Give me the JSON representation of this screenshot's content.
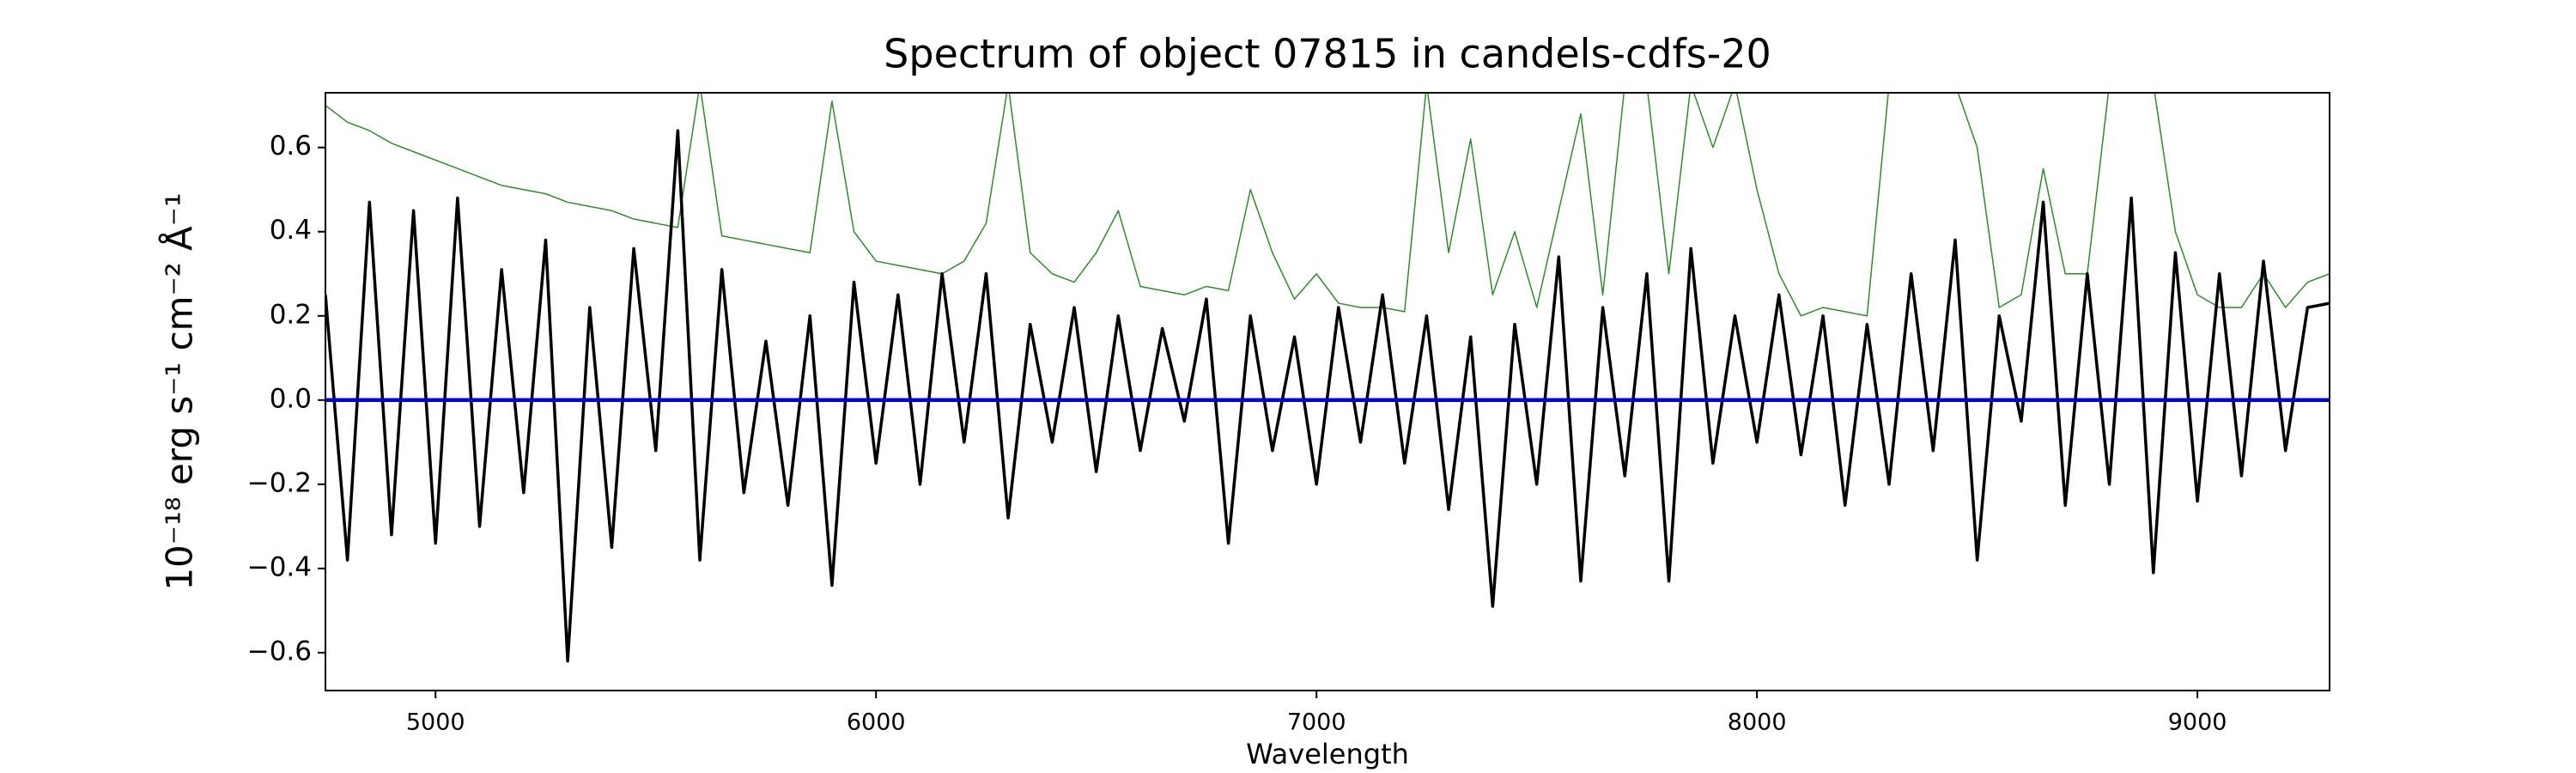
{
  "chart_data": {
    "type": "line",
    "title": "Spectrum of object 07815 in candels-cdfs-20",
    "x_label": "Wavelength",
    "y_label": "10⁻¹⁸ erg s⁻¹ cm⁻² Å⁻¹",
    "xlim": [
      4750,
      9300
    ],
    "ylim": [
      -0.69,
      0.73
    ],
    "xticks": [
      5000,
      6000,
      7000,
      8000,
      9000
    ],
    "yticks": [
      {
        "value": -0.6,
        "label": "−0.6"
      },
      {
        "value": -0.4,
        "label": "−0.4"
      },
      {
        "value": -0.2,
        "label": "−0.2"
      },
      {
        "value": 0,
        "label": "0.0"
      },
      0.2,
      0.4,
      0.6
    ],
    "grid": false,
    "x": [
      4750,
      4800,
      4850,
      4900,
      4950,
      5000,
      5050,
      5100,
      5150,
      5200,
      5250,
      5300,
      5350,
      5400,
      5450,
      5500,
      5550,
      5600,
      5650,
      5700,
      5750,
      5800,
      5850,
      5900,
      5950,
      6000,
      6050,
      6100,
      6150,
      6200,
      6250,
      6300,
      6350,
      6400,
      6450,
      6500,
      6550,
      6600,
      6650,
      6700,
      6750,
      6800,
      6850,
      6900,
      6950,
      7000,
      7050,
      7100,
      7150,
      7200,
      7250,
      7300,
      7350,
      7400,
      7450,
      7500,
      7550,
      7600,
      7650,
      7700,
      7750,
      7800,
      7850,
      7900,
      7950,
      8000,
      8050,
      8100,
      8150,
      8200,
      8250,
      8300,
      8350,
      8400,
      8450,
      8500,
      8550,
      8600,
      8650,
      8700,
      8750,
      8800,
      8850,
      8900,
      8950,
      9000,
      9050,
      9100,
      9150,
      9200,
      9250,
      9300
    ],
    "series": [
      {
        "color": "#2e8b2e",
        "width": 1.5,
        "values": [
          0.7,
          0.66,
          0.64,
          0.61,
          0.59,
          0.57,
          0.55,
          0.53,
          0.51,
          0.5,
          0.49,
          0.47,
          0.46,
          0.45,
          0.43,
          0.42,
          0.41,
          0.75,
          0.39,
          0.38,
          0.37,
          0.36,
          0.35,
          0.71,
          0.4,
          0.33,
          0.32,
          0.31,
          0.3,
          0.33,
          0.42,
          0.75,
          0.35,
          0.3,
          0.28,
          0.35,
          0.45,
          0.27,
          0.26,
          0.25,
          0.27,
          0.26,
          0.5,
          0.35,
          0.24,
          0.3,
          0.23,
          0.22,
          0.22,
          0.21,
          0.75,
          0.35,
          0.62,
          0.25,
          0.4,
          0.22,
          0.45,
          0.68,
          0.25,
          0.75,
          0.75,
          0.3,
          0.75,
          0.6,
          0.75,
          0.5,
          0.3,
          0.2,
          0.22,
          0.21,
          0.2,
          0.75,
          0.75,
          0.75,
          0.75,
          0.6,
          0.22,
          0.25,
          0.55,
          0.3,
          0.3,
          0.75,
          0.75,
          0.75,
          0.4,
          0.25,
          0.22,
          0.22,
          0.3,
          0.22,
          0.28,
          0.3
        ]
      },
      {
        "color": "#000000",
        "width": 3.5,
        "values": [
          0.25,
          -0.38,
          0.47,
          -0.32,
          0.45,
          -0.34,
          0.48,
          -0.3,
          0.31,
          -0.22,
          0.38,
          -0.62,
          0.22,
          -0.35,
          0.36,
          -0.12,
          0.64,
          -0.38,
          0.31,
          -0.22,
          0.14,
          -0.25,
          0.2,
          -0.44,
          0.28,
          -0.15,
          0.25,
          -0.2,
          0.3,
          -0.1,
          0.3,
          -0.28,
          0.18,
          -0.1,
          0.22,
          -0.17,
          0.2,
          -0.12,
          0.17,
          -0.05,
          0.24,
          -0.34,
          0.2,
          -0.12,
          0.15,
          -0.2,
          0.22,
          -0.1,
          0.25,
          -0.15,
          0.2,
          -0.26,
          0.15,
          -0.49,
          0.18,
          -0.2,
          0.34,
          -0.43,
          0.22,
          -0.18,
          0.3,
          -0.43,
          0.36,
          -0.15,
          0.2,
          -0.1,
          0.25,
          -0.13,
          0.2,
          -0.25,
          0.18,
          -0.2,
          0.3,
          -0.12,
          0.38,
          -0.38,
          0.2,
          -0.05,
          0.47,
          -0.25,
          0.3,
          -0.2,
          0.48,
          -0.41,
          0.35,
          -0.24,
          0.3,
          -0.18,
          0.33,
          -0.12,
          0.22,
          0.23
        ]
      },
      {
        "color": "#0000cc",
        "width": 4.5,
        "values": [
          0,
          0,
          0,
          0,
          0,
          0,
          0,
          0,
          0,
          0,
          0,
          0,
          0,
          0,
          0,
          0,
          0,
          0,
          0,
          0,
          0,
          0,
          0,
          0,
          0,
          0,
          0,
          0,
          0,
          0,
          0,
          0,
          0,
          0,
          0,
          0,
          0,
          0,
          0,
          0,
          0,
          0,
          0,
          0,
          0,
          0,
          0,
          0,
          0,
          0,
          0,
          0,
          0,
          0,
          0,
          0,
          0,
          0,
          0,
          0,
          0,
          0,
          0,
          0,
          0,
          0,
          0,
          0,
          0,
          0,
          0,
          0,
          0,
          0,
          0,
          0,
          0,
          0,
          0,
          0,
          0,
          0,
          0,
          0,
          0,
          0,
          0,
          0,
          0,
          0,
          0,
          0
        ]
      }
    ]
  }
}
